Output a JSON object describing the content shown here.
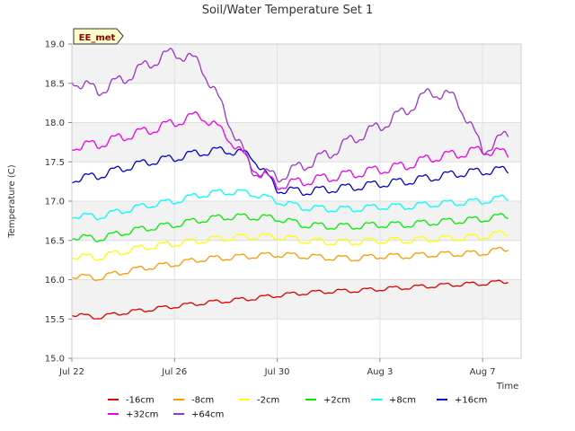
{
  "chart_data": {
    "type": "line",
    "title": "Soil/Water Temperature Set 1",
    "xlabel": "Time",
    "ylabel": "Temperature (C)",
    "badge": "EE_met",
    "ylim": [
      15.0,
      19.0
    ],
    "xlim": [
      "2021-07-22",
      "2021-08-08 12:00"
    ],
    "yticks": [
      "15.0",
      "15.5",
      "16.0",
      "16.5",
      "17.0",
      "17.5",
      "18.0",
      "18.5",
      "19.0"
    ],
    "xticks": [
      {
        "label": "Jul 22",
        "date": "2021-07-22"
      },
      {
        "label": "Jul 26",
        "date": "2021-07-26"
      },
      {
        "label": "Jul 30",
        "date": "2021-07-30"
      },
      {
        "label": "Aug 3",
        "date": "2021-08-03"
      },
      {
        "label": "Aug 7",
        "date": "2021-08-07"
      }
    ],
    "grid": true,
    "legend_position": "bottom",
    "series": [
      {
        "name": "-16cm",
        "color": "#dd0000",
        "x": [
          "2021-07-22",
          "2021-07-23",
          "2021-07-24",
          "2021-07-25",
          "2021-07-26",
          "2021-07-27",
          "2021-07-28",
          "2021-07-29",
          "2021-07-30",
          "2021-07-31",
          "2021-08-01",
          "2021-08-02",
          "2021-08-03",
          "2021-08-04",
          "2021-08-05",
          "2021-08-06",
          "2021-08-07",
          "2021-08-08"
        ],
        "y": [
          15.56,
          15.52,
          15.58,
          15.62,
          15.66,
          15.7,
          15.73,
          15.76,
          15.8,
          15.83,
          15.85,
          15.86,
          15.88,
          15.9,
          15.92,
          15.94,
          15.95,
          15.98
        ],
        "amp": 0.05
      },
      {
        "name": "-8cm",
        "color": "#ff9900",
        "x": [
          "2021-07-22",
          "2021-07-23",
          "2021-07-24",
          "2021-07-25",
          "2021-07-26",
          "2021-07-27",
          "2021-07-28",
          "2021-07-29",
          "2021-07-30",
          "2021-07-31",
          "2021-08-01",
          "2021-08-02",
          "2021-08-03",
          "2021-08-04",
          "2021-08-05",
          "2021-08-06",
          "2021-08-07",
          "2021-08-08"
        ],
        "y": [
          16.05,
          16.02,
          16.1,
          16.16,
          16.2,
          16.26,
          16.28,
          16.3,
          16.32,
          16.3,
          16.28,
          16.27,
          16.3,
          16.3,
          16.32,
          16.33,
          16.34,
          16.4
        ],
        "amp": 0.07
      },
      {
        "name": "-2cm",
        "color": "#ffff00",
        "x": [
          "2021-07-22",
          "2021-07-23",
          "2021-07-24",
          "2021-07-25",
          "2021-07-26",
          "2021-07-27",
          "2021-07-28",
          "2021-07-29",
          "2021-07-30",
          "2021-07-31",
          "2021-08-01",
          "2021-08-02",
          "2021-08-03",
          "2021-08-04",
          "2021-08-05",
          "2021-08-06",
          "2021-08-07",
          "2021-08-08"
        ],
        "y": [
          16.3,
          16.28,
          16.36,
          16.42,
          16.46,
          16.5,
          16.53,
          16.55,
          16.55,
          16.5,
          16.48,
          16.48,
          16.5,
          16.5,
          16.52,
          16.53,
          16.55,
          16.6
        ],
        "amp": 0.08
      },
      {
        "name": "+2cm",
        "color": "#00ee00",
        "x": [
          "2021-07-22",
          "2021-07-23",
          "2021-07-24",
          "2021-07-25",
          "2021-07-26",
          "2021-07-27",
          "2021-07-28",
          "2021-07-29",
          "2021-07-30",
          "2021-07-31",
          "2021-08-01",
          "2021-08-02",
          "2021-08-03",
          "2021-08-04",
          "2021-08-05",
          "2021-08-06",
          "2021-08-07",
          "2021-08-08"
        ],
        "y": [
          16.55,
          16.52,
          16.6,
          16.66,
          16.7,
          16.76,
          16.8,
          16.8,
          16.78,
          16.7,
          16.68,
          16.68,
          16.7,
          16.7,
          16.73,
          16.75,
          16.77,
          16.82
        ],
        "amp": 0.08
      },
      {
        "name": "+8cm",
        "color": "#00ffff",
        "x": [
          "2021-07-22",
          "2021-07-23",
          "2021-07-24",
          "2021-07-25",
          "2021-07-26",
          "2021-07-27",
          "2021-07-28",
          "2021-07-29",
          "2021-07-30",
          "2021-07-31",
          "2021-08-01",
          "2021-08-02",
          "2021-08-03",
          "2021-08-04",
          "2021-08-05",
          "2021-08-06",
          "2021-08-07",
          "2021-08-08"
        ],
        "y": [
          16.82,
          16.8,
          16.88,
          16.95,
          17.0,
          17.08,
          17.12,
          17.1,
          17.0,
          16.92,
          16.9,
          16.9,
          16.93,
          16.93,
          16.96,
          16.98,
          17.0,
          17.05
        ],
        "amp": 0.08
      },
      {
        "name": "+16cm",
        "color": "#0000cc",
        "x": [
          "2021-07-22",
          "2021-07-23",
          "2021-07-24",
          "2021-07-25",
          "2021-07-26",
          "2021-07-27",
          "2021-07-28",
          "2021-07-29",
          "2021-07-30",
          "2021-07-31",
          "2021-08-01",
          "2021-08-02",
          "2021-08-03",
          "2021-08-04",
          "2021-08-05",
          "2021-08-06",
          "2021-08-07",
          "2021-08-08"
        ],
        "y": [
          17.28,
          17.32,
          17.42,
          17.5,
          17.55,
          17.62,
          17.65,
          17.58,
          17.15,
          17.12,
          17.15,
          17.18,
          17.22,
          17.25,
          17.3,
          17.35,
          17.38,
          17.4
        ],
        "amp": 0.1
      },
      {
        "name": "+32cm",
        "color": "#ee00ee",
        "x": [
          "2021-07-22",
          "2021-07-23",
          "2021-07-24",
          "2021-07-25",
          "2021-07-26",
          "2021-07-27",
          "2021-07-28",
          "2021-07-29",
          "2021-07-30",
          "2021-07-31",
          "2021-08-01",
          "2021-08-02",
          "2021-08-03",
          "2021-08-04",
          "2021-08-05",
          "2021-08-06",
          "2021-08-07",
          "2021-08-08"
        ],
        "y": [
          17.7,
          17.72,
          17.82,
          17.9,
          18.0,
          18.1,
          17.85,
          17.45,
          17.2,
          17.25,
          17.3,
          17.35,
          17.4,
          17.45,
          17.55,
          17.6,
          17.65,
          17.6
        ],
        "amp": 0.12
      },
      {
        "name": "+64cm",
        "color": "#9933cc",
        "x": [
          "2021-07-22",
          "2021-07-23",
          "2021-07-24",
          "2021-07-25",
          "2021-07-26",
          "2021-07-27",
          "2021-07-28",
          "2021-07-29",
          "2021-07-30",
          "2021-07-31",
          "2021-08-01",
          "2021-08-02",
          "2021-08-03",
          "2021-08-04",
          "2021-08-05",
          "2021-08-06",
          "2021-08-07",
          "2021-08-08"
        ],
        "y": [
          18.55,
          18.4,
          18.55,
          18.75,
          18.9,
          18.75,
          18.1,
          17.4,
          17.3,
          17.45,
          17.6,
          17.8,
          17.95,
          18.15,
          18.4,
          18.3,
          17.65,
          17.85
        ],
        "amp": 0.15
      }
    ]
  }
}
